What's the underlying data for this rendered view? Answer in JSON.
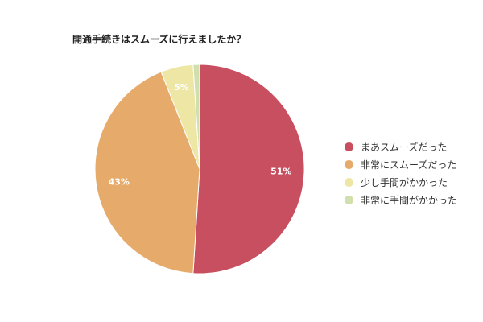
{
  "chart_data": {
    "type": "pie",
    "title": "開通手続きはスムーズに行えましたか？",
    "categories": [
      "まあスムーズだった",
      "非常にスムーズだった",
      "少し手間がかかった",
      "非常に手間がかかった"
    ],
    "values": [
      51,
      43,
      5,
      1
    ],
    "value_labels": [
      "51%",
      "43%",
      "5%",
      ""
    ],
    "colors": [
      "#c84f60",
      "#e6ab6a",
      "#ede6a4",
      "#cfe0ae"
    ],
    "legend_position": "right"
  }
}
